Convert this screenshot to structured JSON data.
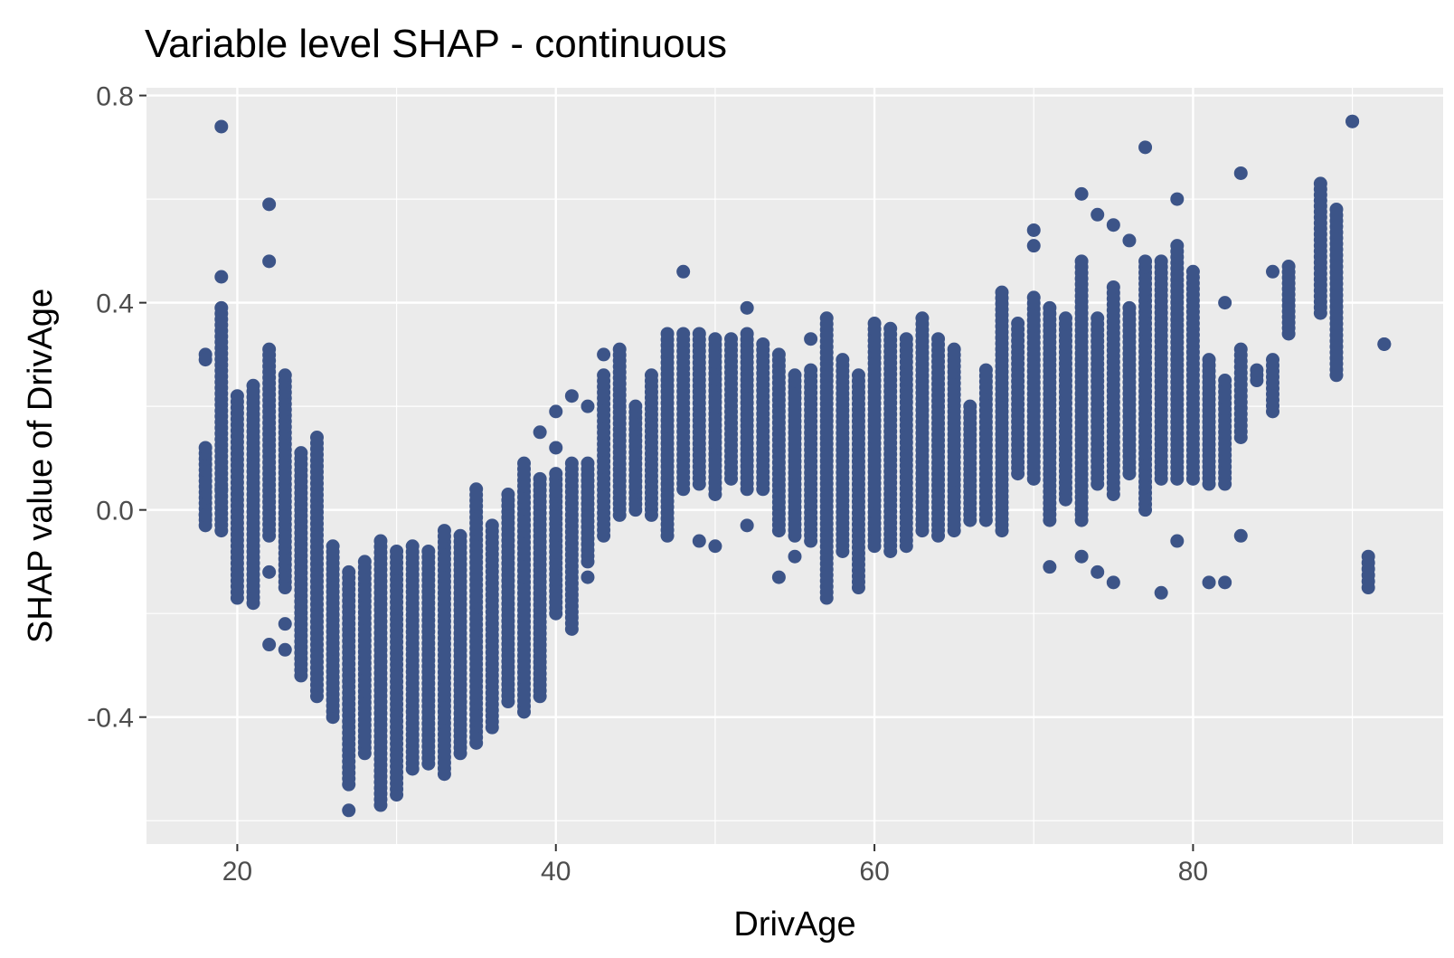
{
  "chart_data": {
    "type": "scatter",
    "title": "Variable level SHAP - continuous",
    "xlabel": "DrivAge",
    "ylabel": "SHAP value of DrivAge",
    "xlim": [
      14.3,
      95.7
    ],
    "ylim": [
      -0.645,
      0.815
    ],
    "xticks": [
      20,
      40,
      60,
      80
    ],
    "xtick_labels": [
      "20",
      "40",
      "60",
      "80"
    ],
    "yticks": [
      -0.4,
      0.0,
      0.4,
      0.8
    ],
    "ytick_labels": [
      "-0.4",
      "0.0",
      "0.4",
      "0.8"
    ],
    "x_minor": [
      30,
      50,
      70,
      90
    ],
    "y_minor": [
      -0.6,
      -0.2,
      0.2,
      0.6
    ],
    "grid": true,
    "legend": "none",
    "colors": {
      "points": "#3C5488",
      "panel": "#EBEBEB",
      "grid": "#FFFFFF"
    },
    "columns": [
      {
        "x": 18,
        "range": [
          -0.03,
          0.12
        ],
        "extra": [
          0.3,
          0.29,
          -0.01
        ]
      },
      {
        "x": 19,
        "range": [
          -0.04,
          0.39
        ],
        "extra": [
          0.74,
          0.45,
          0.04
        ]
      },
      {
        "x": 20,
        "range": [
          -0.17,
          0.22
        ],
        "extra": []
      },
      {
        "x": 21,
        "range": [
          -0.18,
          0.24
        ],
        "extra": []
      },
      {
        "x": 22,
        "range": [
          -0.05,
          0.31
        ],
        "extra": [
          0.59,
          0.48,
          -0.12,
          -0.26
        ]
      },
      {
        "x": 23,
        "range": [
          -0.15,
          0.26
        ],
        "extra": [
          -0.22,
          -0.27
        ]
      },
      {
        "x": 24,
        "range": [
          -0.32,
          0.11
        ],
        "extra": []
      },
      {
        "x": 25,
        "range": [
          -0.36,
          0.14
        ],
        "extra": []
      },
      {
        "x": 26,
        "range": [
          -0.4,
          -0.07
        ],
        "extra": []
      },
      {
        "x": 27,
        "range": [
          -0.53,
          -0.12
        ],
        "extra": [
          -0.58
        ]
      },
      {
        "x": 28,
        "range": [
          -0.47,
          -0.1
        ],
        "extra": []
      },
      {
        "x": 29,
        "range": [
          -0.57,
          -0.06
        ],
        "extra": []
      },
      {
        "x": 30,
        "range": [
          -0.55,
          -0.08
        ],
        "extra": []
      },
      {
        "x": 31,
        "range": [
          -0.5,
          -0.07
        ],
        "extra": []
      },
      {
        "x": 32,
        "range": [
          -0.49,
          -0.08
        ],
        "extra": []
      },
      {
        "x": 33,
        "range": [
          -0.51,
          -0.04
        ],
        "extra": []
      },
      {
        "x": 34,
        "range": [
          -0.47,
          -0.05
        ],
        "extra": []
      },
      {
        "x": 35,
        "range": [
          -0.45,
          0.04
        ],
        "extra": []
      },
      {
        "x": 36,
        "range": [
          -0.42,
          -0.03
        ],
        "extra": []
      },
      {
        "x": 37,
        "range": [
          -0.37,
          0.03
        ],
        "extra": []
      },
      {
        "x": 38,
        "range": [
          -0.39,
          0.09
        ],
        "extra": []
      },
      {
        "x": 39,
        "range": [
          -0.36,
          0.06
        ],
        "extra": [
          0.15
        ]
      },
      {
        "x": 40,
        "range": [
          -0.2,
          0.07
        ],
        "extra": [
          0.19,
          0.12
        ]
      },
      {
        "x": 41,
        "range": [
          -0.23,
          0.09
        ],
        "extra": [
          0.22
        ]
      },
      {
        "x": 42,
        "range": [
          -0.1,
          0.09
        ],
        "extra": [
          0.2,
          -0.13
        ]
      },
      {
        "x": 43,
        "range": [
          -0.05,
          0.26
        ],
        "extra": [
          0.3
        ]
      },
      {
        "x": 44,
        "range": [
          -0.01,
          0.31
        ],
        "extra": []
      },
      {
        "x": 45,
        "range": [
          0.0,
          0.2
        ],
        "extra": []
      },
      {
        "x": 46,
        "range": [
          -0.01,
          0.26
        ],
        "extra": []
      },
      {
        "x": 47,
        "range": [
          -0.05,
          0.34
        ],
        "extra": []
      },
      {
        "x": 48,
        "range": [
          0.04,
          0.34
        ],
        "extra": [
          0.46
        ]
      },
      {
        "x": 49,
        "range": [
          0.05,
          0.34
        ],
        "extra": [
          -0.06
        ]
      },
      {
        "x": 50,
        "range": [
          0.03,
          0.33
        ],
        "extra": [
          -0.07
        ]
      },
      {
        "x": 51,
        "range": [
          0.06,
          0.33
        ],
        "extra": []
      },
      {
        "x": 52,
        "range": [
          0.04,
          0.34
        ],
        "extra": [
          0.39,
          -0.03
        ]
      },
      {
        "x": 53,
        "range": [
          0.04,
          0.32
        ],
        "extra": []
      },
      {
        "x": 54,
        "range": [
          -0.04,
          0.3
        ],
        "extra": [
          -0.13
        ]
      },
      {
        "x": 55,
        "range": [
          -0.05,
          0.26
        ],
        "extra": [
          -0.09
        ]
      },
      {
        "x": 56,
        "range": [
          -0.06,
          0.27
        ],
        "extra": [
          0.33
        ]
      },
      {
        "x": 57,
        "range": [
          -0.17,
          0.37
        ],
        "extra": []
      },
      {
        "x": 58,
        "range": [
          -0.08,
          0.29
        ],
        "extra": []
      },
      {
        "x": 59,
        "range": [
          -0.15,
          0.26
        ],
        "extra": []
      },
      {
        "x": 60,
        "range": [
          -0.07,
          0.36
        ],
        "extra": []
      },
      {
        "x": 61,
        "range": [
          -0.08,
          0.35
        ],
        "extra": []
      },
      {
        "x": 62,
        "range": [
          -0.07,
          0.33
        ],
        "extra": []
      },
      {
        "x": 63,
        "range": [
          -0.04,
          0.37
        ],
        "extra": []
      },
      {
        "x": 64,
        "range": [
          -0.05,
          0.33
        ],
        "extra": []
      },
      {
        "x": 65,
        "range": [
          -0.04,
          0.31
        ],
        "extra": []
      },
      {
        "x": 66,
        "range": [
          -0.02,
          0.2
        ],
        "extra": []
      },
      {
        "x": 67,
        "range": [
          -0.02,
          0.27
        ],
        "extra": []
      },
      {
        "x": 68,
        "range": [
          -0.04,
          0.42
        ],
        "extra": []
      },
      {
        "x": 69,
        "range": [
          0.07,
          0.36
        ],
        "extra": []
      },
      {
        "x": 70,
        "range": [
          0.06,
          0.41
        ],
        "extra": [
          0.54,
          0.51
        ]
      },
      {
        "x": 71,
        "range": [
          -0.02,
          0.39
        ],
        "extra": [
          -0.11
        ]
      },
      {
        "x": 72,
        "range": [
          0.02,
          0.37
        ],
        "extra": []
      },
      {
        "x": 73,
        "range": [
          -0.02,
          0.48
        ],
        "extra": [
          0.61,
          -0.09
        ]
      },
      {
        "x": 74,
        "range": [
          0.05,
          0.37
        ],
        "extra": [
          0.57,
          -0.12
        ]
      },
      {
        "x": 75,
        "range": [
          0.03,
          0.43
        ],
        "extra": [
          0.55,
          -0.14
        ]
      },
      {
        "x": 76,
        "range": [
          0.07,
          0.39
        ],
        "extra": [
          0.52
        ]
      },
      {
        "x": 77,
        "range": [
          0.0,
          0.48
        ],
        "extra": [
          0.7
        ]
      },
      {
        "x": 78,
        "range": [
          0.06,
          0.48
        ],
        "extra": [
          -0.16
        ]
      },
      {
        "x": 79,
        "range": [
          0.06,
          0.51
        ],
        "extra": [
          0.6,
          -0.06
        ]
      },
      {
        "x": 80,
        "range": [
          0.06,
          0.46
        ],
        "extra": []
      },
      {
        "x": 81,
        "range": [
          0.05,
          0.29
        ],
        "extra": [
          -0.14
        ]
      },
      {
        "x": 82,
        "range": [
          0.05,
          0.25
        ],
        "extra": [
          0.4,
          -0.14
        ]
      },
      {
        "x": 83,
        "range": [
          0.14,
          0.31
        ],
        "extra": [
          0.65,
          -0.05
        ]
      },
      {
        "x": 84,
        "range": [
          0.25,
          0.27
        ],
        "extra": []
      },
      {
        "x": 85,
        "range": [
          0.19,
          0.29
        ],
        "extra": [
          0.46
        ]
      },
      {
        "x": 86,
        "range": [
          0.34,
          0.47
        ],
        "extra": []
      },
      {
        "x": 88,
        "range": [
          0.38,
          0.63
        ],
        "extra": []
      },
      {
        "x": 89,
        "range": [
          0.26,
          0.58
        ],
        "extra": []
      },
      {
        "x": 90,
        "range": [
          0.75,
          0.75
        ],
        "extra": []
      },
      {
        "x": 91,
        "range": [
          -0.15,
          -0.09
        ],
        "extra": []
      },
      {
        "x": 92,
        "range": [
          0.32,
          0.32
        ],
        "extra": []
      }
    ]
  }
}
